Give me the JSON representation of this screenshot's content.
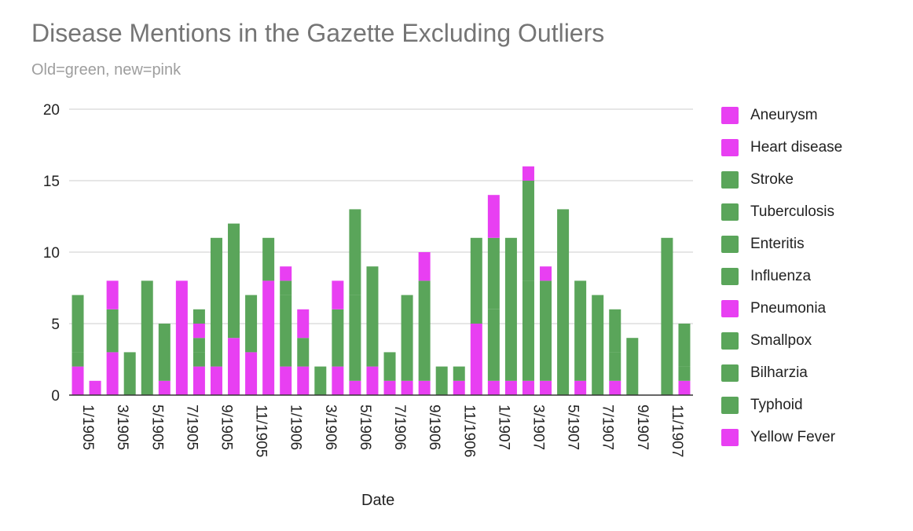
{
  "chart_data": {
    "type": "bar",
    "stacked": true,
    "title": "Disease Mentions in the Gazette Excluding Outliers",
    "subtitle": "Old=green, new=pink",
    "xlabel": "Date",
    "ylabel": "",
    "ylim": [
      0,
      20
    ],
    "yticks": [
      0,
      5,
      10,
      15,
      20
    ],
    "grid": true,
    "legend_position": "right",
    "xtick_labels": [
      "1/1905",
      "3/1905",
      "5/1905",
      "7/1905",
      "9/1905",
      "11/1905",
      "1/1906",
      "3/1906",
      "5/1906",
      "7/1906",
      "9/1906",
      "11/1906",
      "1/1907",
      "3/1907",
      "5/1907",
      "7/1907",
      "9/1907",
      "11/1907"
    ],
    "categories": [
      "1/1905",
      "2/1905",
      "3/1905",
      "4/1905",
      "5/1905",
      "6/1905",
      "7/1905",
      "8/1905",
      "9/1905",
      "10/1905",
      "11/1905",
      "12/1905",
      "1/1906",
      "2/1906",
      "3/1906",
      "4/1906",
      "5/1906",
      "6/1906",
      "7/1906",
      "8/1906",
      "9/1906",
      "10/1906",
      "11/1906",
      "12/1906",
      "1/1907",
      "2/1907",
      "3/1907",
      "4/1907",
      "5/1907",
      "6/1907",
      "7/1907",
      "8/1907",
      "9/1907",
      "10/1907",
      "11/1907",
      "12/1907"
    ],
    "series": [
      {
        "name": "Aneurysm",
        "color": "#e83ff2",
        "values": [
          0,
          0,
          0,
          0,
          0,
          0,
          0,
          0,
          0,
          0,
          0,
          0,
          0,
          0,
          0,
          0,
          0,
          0,
          0,
          0,
          0,
          0,
          0,
          0,
          0,
          0,
          0,
          0,
          0,
          0,
          0,
          0,
          0,
          0,
          0,
          0
        ]
      },
      {
        "name": "Heart disease",
        "color": "#e83ff2",
        "values": [
          2,
          1,
          3,
          0,
          0,
          1,
          8,
          2,
          2,
          4,
          3,
          8,
          2,
          2,
          0,
          2,
          1,
          2,
          1,
          1,
          1,
          0,
          1,
          5,
          1,
          1,
          1,
          1,
          0,
          1,
          0,
          1,
          0,
          0,
          0,
          1
        ]
      },
      {
        "name": "Stroke",
        "color": "#5aa55a",
        "values": [
          0,
          0,
          0,
          0,
          0,
          0,
          0,
          0,
          0,
          0,
          0,
          0,
          0,
          0,
          0,
          0,
          0,
          0,
          0,
          0,
          0,
          0,
          0,
          0,
          0,
          0,
          0,
          0,
          0,
          0,
          0,
          0,
          0,
          0,
          0,
          0
        ]
      },
      {
        "name": "Tuberculosis",
        "color": "#5aa55a",
        "values": [
          1,
          0,
          2,
          3,
          8,
          4,
          0,
          1,
          9,
          8,
          4,
          3,
          5,
          2,
          2,
          4,
          6,
          7,
          2,
          6,
          7,
          2,
          1,
          6,
          5,
          10,
          7,
          7,
          13,
          7,
          7,
          2,
          4,
          0,
          11,
          1
        ]
      },
      {
        "name": "Enteritis",
        "color": "#5aa55a",
        "values": [
          4,
          0,
          1,
          0,
          0,
          0,
          0,
          1,
          0,
          0,
          0,
          0,
          1,
          0,
          0,
          0,
          6,
          0,
          0,
          0,
          0,
          0,
          0,
          0,
          5,
          0,
          7,
          0,
          0,
          0,
          0,
          3,
          0,
          0,
          0,
          3
        ]
      },
      {
        "name": "Influenza",
        "color": "#5aa55a",
        "values": [
          0,
          0,
          0,
          0,
          0,
          0,
          0,
          0,
          0,
          0,
          0,
          0,
          0,
          0,
          0,
          0,
          0,
          0,
          0,
          0,
          0,
          0,
          0,
          0,
          0,
          0,
          0,
          0,
          0,
          0,
          0,
          0,
          0,
          0,
          0,
          0
        ]
      },
      {
        "name": "Pneumonia",
        "color": "#e83ff2",
        "values": [
          0,
          0,
          2,
          0,
          0,
          0,
          0,
          1,
          0,
          0,
          0,
          0,
          0,
          2,
          0,
          2,
          0,
          0,
          0,
          0,
          0,
          0,
          0,
          0,
          3,
          0,
          0,
          0,
          0,
          0,
          0,
          0,
          0,
          0,
          0,
          0
        ]
      },
      {
        "name": "Smallpox",
        "color": "#5aa55a",
        "values": [
          0,
          0,
          0,
          0,
          0,
          0,
          0,
          0,
          0,
          0,
          0,
          0,
          0,
          0,
          0,
          0,
          0,
          0,
          0,
          0,
          0,
          0,
          0,
          0,
          0,
          0,
          0,
          0,
          0,
          0,
          0,
          0,
          0,
          0,
          0,
          0
        ]
      },
      {
        "name": "Bilharzia",
        "color": "#5aa55a",
        "values": [
          0,
          0,
          0,
          0,
          0,
          0,
          0,
          0,
          0,
          0,
          0,
          0,
          0,
          0,
          0,
          0,
          0,
          0,
          0,
          0,
          0,
          0,
          0,
          0,
          0,
          0,
          0,
          0,
          0,
          0,
          0,
          0,
          0,
          0,
          0,
          0
        ]
      },
      {
        "name": "Typhoid",
        "color": "#5aa55a",
        "values": [
          0,
          0,
          0,
          0,
          0,
          0,
          0,
          1,
          0,
          0,
          0,
          0,
          0,
          0,
          0,
          0,
          0,
          0,
          0,
          0,
          0,
          0,
          0,
          0,
          0,
          0,
          0,
          0,
          0,
          0,
          0,
          0,
          0,
          0,
          0,
          0
        ]
      },
      {
        "name": "Yellow Fever",
        "color": "#e83ff2",
        "values": [
          0,
          0,
          0,
          0,
          0,
          0,
          0,
          0,
          0,
          0,
          0,
          0,
          1,
          0,
          0,
          0,
          0,
          0,
          0,
          0,
          2,
          0,
          0,
          0,
          0,
          0,
          1,
          1,
          0,
          0,
          0,
          0,
          0,
          0,
          0,
          0
        ]
      }
    ]
  }
}
